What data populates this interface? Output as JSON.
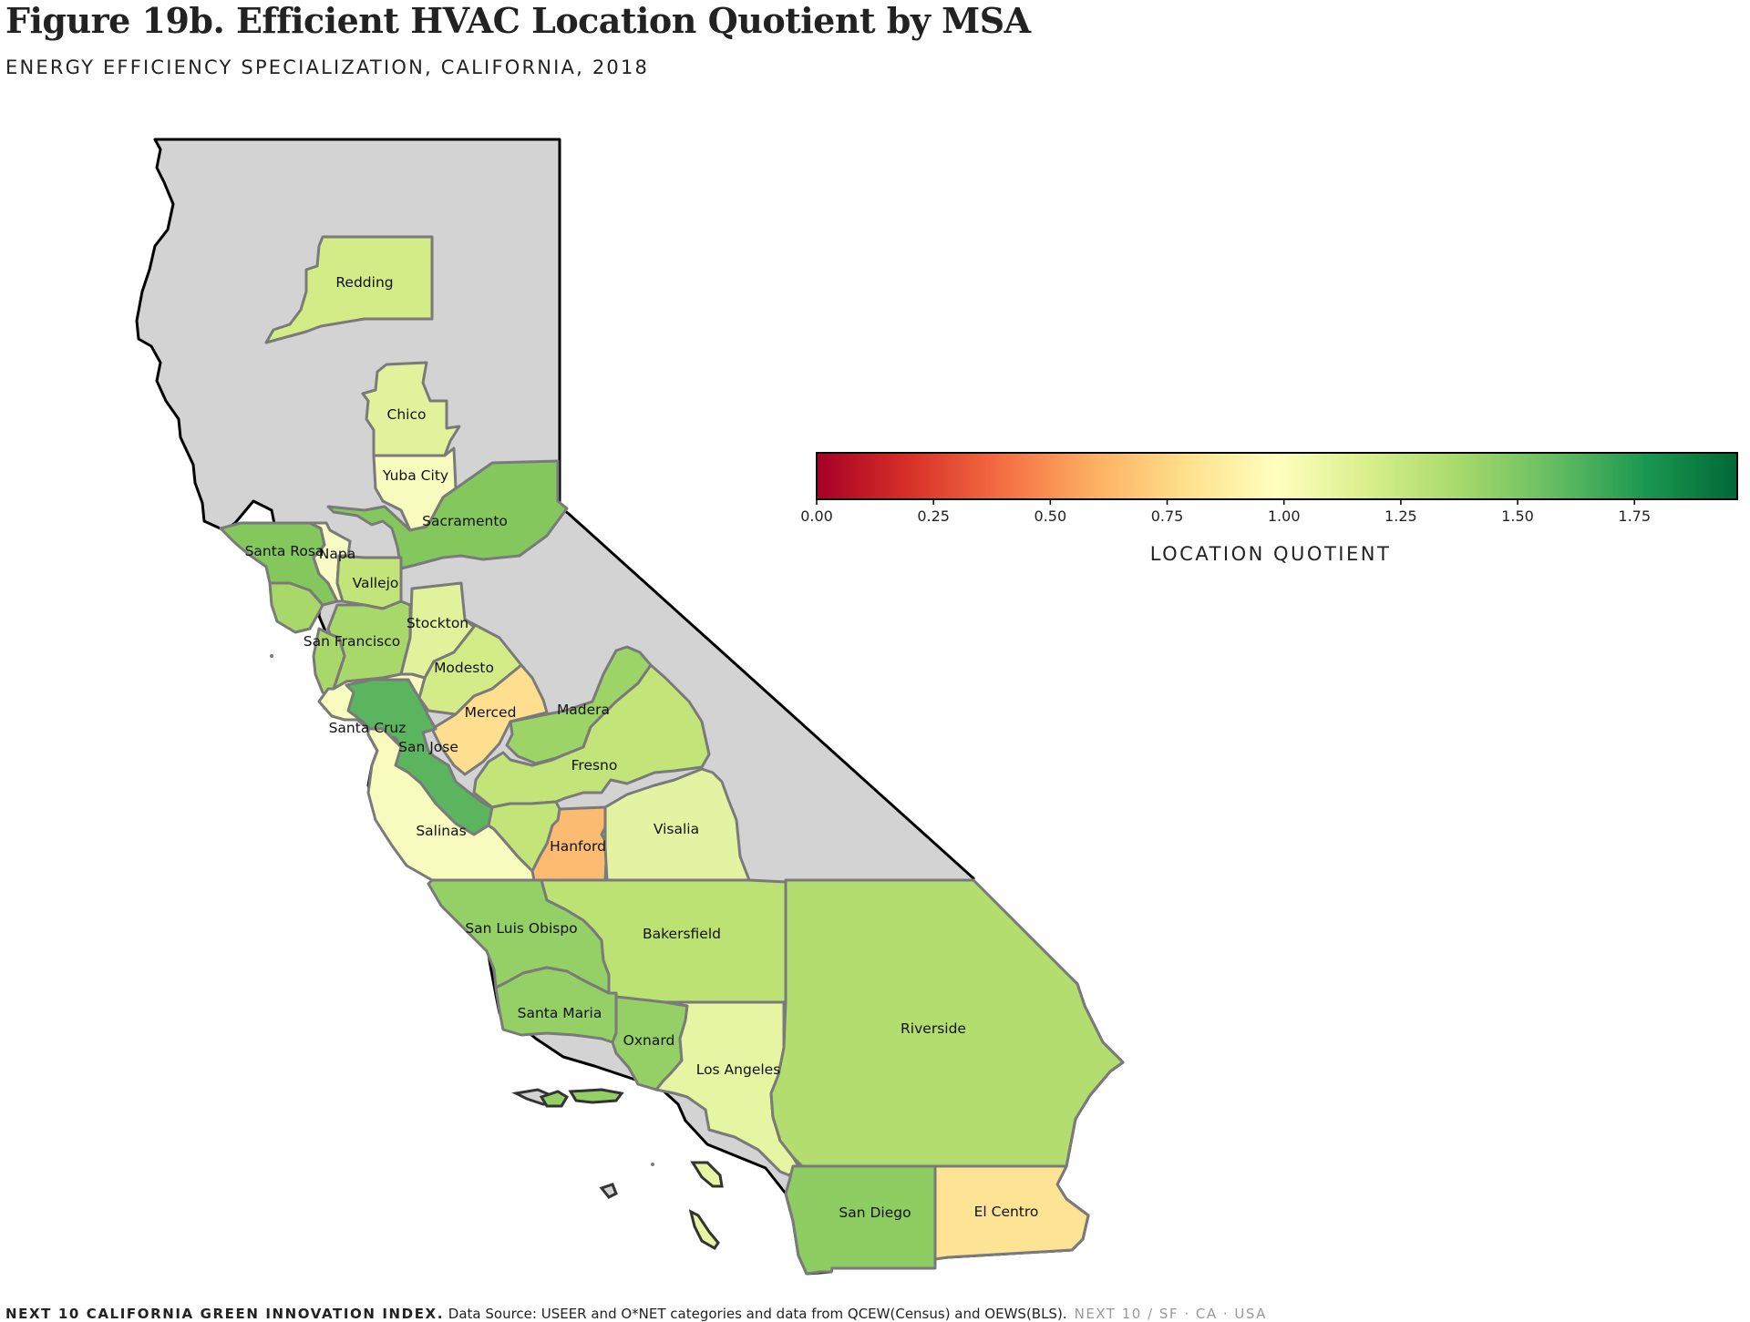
{
  "title": "Figure 19b. Efficient HVAC Location Quotient by MSA",
  "subtitle": "ENERGY EFFICIENCY SPECIALIZATION, CALIFORNIA, 2018",
  "colorbar": {
    "title": "LOCATION QUOTIENT",
    "ticks": [
      "0.00",
      "0.25",
      "0.50",
      "0.75",
      "1.00",
      "1.25",
      "1.50",
      "1.75"
    ],
    "min": 0,
    "max": 1.97,
    "colormap": [
      "#a50026",
      "#d73027",
      "#f46d43",
      "#fdae61",
      "#fee08b",
      "#ffffbf",
      "#d9ef8b",
      "#a6d96a",
      "#66bd63",
      "#1a9850",
      "#006837"
    ]
  },
  "state": {
    "fill": "#d3d3d3",
    "outline": "#000000",
    "msa_outline": "#7a7a7a"
  },
  "regions": {
    "redding": "Redding",
    "chico": "Chico",
    "yuba_city": "Yuba City",
    "sacramento": "Sacramento",
    "santa_rosa": "Santa Rosa",
    "napa": "Napa",
    "vallejo": "Vallejo",
    "san_francisco": "San Francisco",
    "stockton": "Stockton",
    "modesto": "Modesto",
    "merced": "Merced",
    "madera": "Madera",
    "santa_cruz": "Santa Cruz",
    "san_jose": "San Jose",
    "fresno": "Fresno",
    "salinas": "Salinas",
    "hanford": "Hanford",
    "visalia": "Visalia",
    "san_luis_obispo": "San Luis Obispo",
    "bakersfield": "Bakersfield",
    "santa_maria": "Santa Maria",
    "oxnard": "Oxnard",
    "los_angeles": "Los Angeles",
    "riverside": "Riverside",
    "san_diego": "San Diego",
    "el_centro": "El Centro"
  },
  "region_colors": {
    "redding": "#d4ec88",
    "chico": "#e2f29c",
    "yuba_city": "#f7fbbd",
    "sacramento": "#84c75d",
    "santa_rosa": "#84c75d",
    "napa": "#f9fbc4",
    "vallejo": "#c2e478",
    "san_francisco": "#a9d86a",
    "stockton": "#e2f29c",
    "modesto": "#d4ec88",
    "merced": "#fddf8f",
    "madera": "#9dd468",
    "santa_cruz": "#f7fbbd",
    "san_jose": "#5bb45e",
    "fresno": "#c2e478",
    "salinas": "#f7fbbd",
    "hanford": "#fbbb70",
    "visalia": "#e4f3a2",
    "san_luis_obispo": "#94d066",
    "bakersfield": "#bde274",
    "santa_maria": "#94d066",
    "oxnard": "#94d066",
    "los_angeles": "#e6f5a2",
    "riverside": "#b3dd6f",
    "san_diego": "#8ecd62",
    "el_centro": "#fde495"
  },
  "footer": {
    "brand": "NEXT 10 CALIFORNIA GREEN INNOVATION INDEX.",
    "source": " Data Source: USEER and O*NET categories and data from QCEW(Census) and OEWS(BLS).",
    "tag": "NEXT 10  /  SF · CA · USA"
  }
}
